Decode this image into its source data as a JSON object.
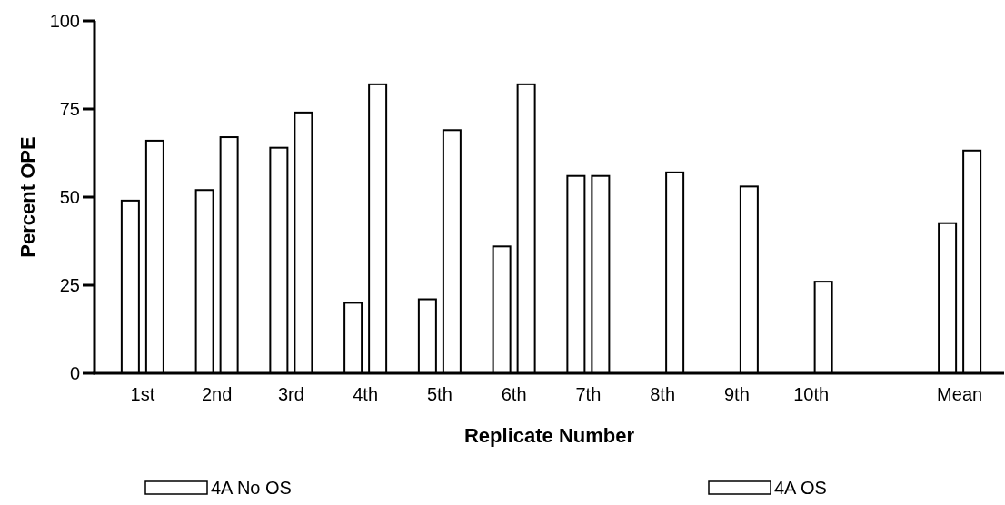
{
  "chart_data": {
    "type": "bar",
    "xlabel": "Replicate Number",
    "ylabel": "Percent OPE",
    "categories": [
      "1st",
      "2nd",
      "3rd",
      "4th",
      "5th",
      "6th",
      "7th",
      "8th",
      "9th",
      "10th",
      null,
      "Mean"
    ],
    "series": [
      {
        "name": "4A No OS",
        "color": "#ffffff",
        "values": [
          49,
          52,
          64,
          20,
          21,
          36,
          56,
          null,
          null,
          null,
          null,
          42.6
        ]
      },
      {
        "name": "4A OS",
        "color": "#ffffff",
        "values": [
          66,
          67,
          74,
          82,
          69,
          82,
          56,
          57,
          53,
          26,
          null,
          63.2
        ]
      }
    ],
    "ylim": [
      0,
      100
    ],
    "yticks": [
      0,
      25,
      50,
      75,
      100
    ],
    "grid": false,
    "legend": "bottom"
  }
}
